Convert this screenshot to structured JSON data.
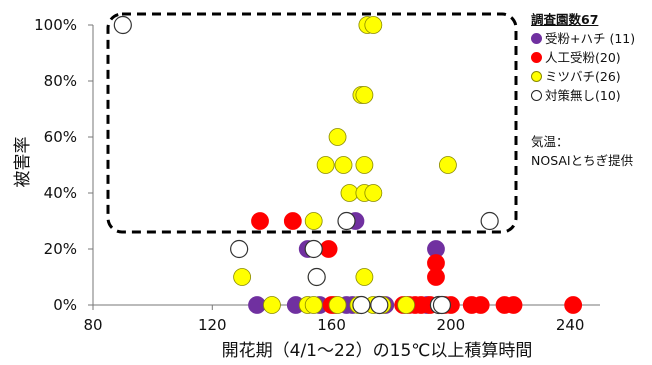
{
  "chart_data": {
    "type": "scatter",
    "xlabel": "開花期（4/1～22）の15℃以上積算時間",
    "ylabel": "被害率",
    "xlim": [
      80,
      250
    ],
    "ylim": [
      0,
      100
    ],
    "x_ticks": [
      "80",
      "120",
      "160",
      "200",
      "240"
    ],
    "y_ticks": [
      "0%",
      "20%",
      "40%",
      "60%",
      "80%",
      "100%"
    ],
    "legend_title": "調査園数67",
    "series": [
      {
        "name": "受粉+ハチ (11)",
        "color": "#7030a0",
        "points": [
          [
            135,
            0
          ],
          [
            148,
            0
          ],
          [
            152,
            20
          ],
          [
            156,
            0
          ],
          [
            165,
            0
          ],
          [
            167,
            0
          ],
          [
            168,
            30
          ],
          [
            178,
            0
          ],
          [
            192,
            0
          ],
          [
            195,
            20
          ],
          [
            196,
            0
          ]
        ]
      },
      {
        "name": "人工受粉(20)",
        "color": "#ff0000",
        "points": [
          [
            136,
            30
          ],
          [
            147,
            30
          ],
          [
            159,
            20
          ],
          [
            160,
            0
          ],
          [
            161,
            0
          ],
          [
            176,
            0
          ],
          [
            184,
            0
          ],
          [
            186,
            0
          ],
          [
            188,
            0
          ],
          [
            190,
            0
          ],
          [
            193,
            0
          ],
          [
            195,
            10
          ],
          [
            195,
            15
          ],
          [
            198,
            0
          ],
          [
            200,
            0
          ],
          [
            207,
            0
          ],
          [
            210,
            0
          ],
          [
            218,
            0
          ],
          [
            221,
            0
          ],
          [
            241,
            0
          ]
        ]
      },
      {
        "name": "ミツバチ(26)",
        "color": "#ffff00",
        "points": [
          [
            172,
            100
          ],
          [
            174,
            100
          ],
          [
            170,
            75
          ],
          [
            171,
            75
          ],
          [
            162,
            60
          ],
          [
            158,
            50
          ],
          [
            164,
            50
          ],
          [
            171,
            50
          ],
          [
            199,
            50
          ],
          [
            166,
            40
          ],
          [
            171,
            40
          ],
          [
            174,
            40
          ],
          [
            154,
            30
          ],
          [
            130,
            10
          ],
          [
            155,
            10
          ],
          [
            171,
            10
          ],
          [
            140,
            0
          ],
          [
            152,
            0
          ],
          [
            154,
            0
          ],
          [
            162,
            0
          ],
          [
            169,
            0
          ],
          [
            174,
            0
          ],
          [
            177,
            0
          ],
          [
            185,
            0
          ],
          [
            196,
            0
          ],
          [
            197,
            0
          ]
        ]
      },
      {
        "name": "対策無し(10)",
        "color": "#ffffff",
        "points": [
          [
            90,
            100
          ],
          [
            129,
            20
          ],
          [
            155,
            10
          ],
          [
            154,
            20
          ],
          [
            165,
            30
          ],
          [
            213,
            30
          ],
          [
            170,
            0
          ],
          [
            176,
            0
          ],
          [
            196,
            0
          ],
          [
            197,
            0
          ]
        ]
      }
    ],
    "annotation": [
      "気温：",
      "NOSAIとちぎ提供"
    ]
  }
}
